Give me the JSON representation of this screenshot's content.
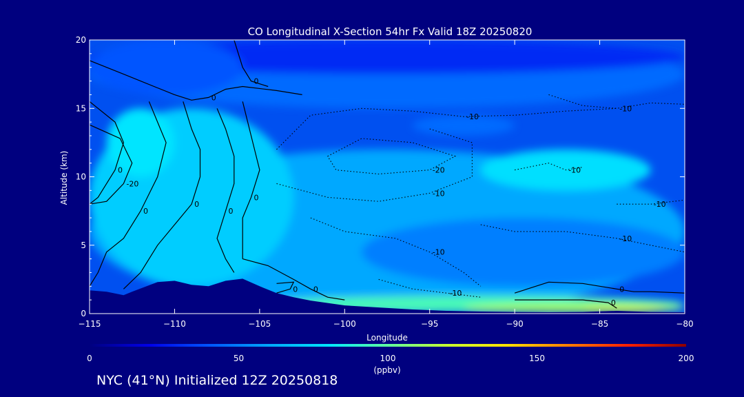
{
  "chart_data": {
    "type": "heatmap",
    "title": "CO Longitudinal X-Section 54hr  Fx Valid 18Z 20250820",
    "xlabel": "Longitude",
    "ylabel": "Altitude (km)",
    "xlim": [
      -115,
      -80
    ],
    "ylim": [
      0,
      20
    ],
    "x_ticks": [
      -115,
      -110,
      -105,
      -100,
      -95,
      -90,
      -85,
      -80
    ],
    "x_tick_labels": [
      "−115",
      "−110",
      "−105",
      "−100",
      "−95",
      "−90",
      "−85",
      "−80"
    ],
    "y_ticks": [
      0,
      5,
      10,
      15,
      20
    ],
    "y_tick_labels": [
      "0",
      "5",
      "10",
      "15",
      "20"
    ],
    "colorbar": {
      "label": "(ppbv)",
      "range": [
        0,
        200
      ],
      "ticks": [
        0,
        50,
        100,
        150,
        200
      ],
      "tick_labels": [
        "0",
        "50",
        "100",
        "150",
        "200"
      ],
      "colors": [
        "#00007f",
        "#0000e8",
        "#0055ff",
        "#00a8ff",
        "#00e5ff",
        "#60ffa0",
        "#c8ff30",
        "#ffe000",
        "#ff8000",
        "#ff2000",
        "#8b0000"
      ]
    },
    "terrain": {
      "longitude": [
        -115,
        -114,
        -113,
        -112.5,
        -111,
        -110,
        -109,
        -108,
        -107,
        -106,
        -105,
        -104,
        -103,
        -102,
        -100,
        -98,
        -96,
        -94,
        -92,
        -90,
        -88,
        -86,
        -84,
        -82,
        -80
      ],
      "altitude_km": [
        1.7,
        1.6,
        1.35,
        1.6,
        2.3,
        2.4,
        2.1,
        2.0,
        2.4,
        2.55,
        2.0,
        1.5,
        1.2,
        0.95,
        0.6,
        0.45,
        0.3,
        0.2,
        0.15,
        0.12,
        0.1,
        0.12,
        0.2,
        0.12,
        0.1
      ]
    },
    "regions": [
      {
        "value_ppbv": 60,
        "shape": "mid-level band",
        "longitude": [
          -115,
          -80
        ],
        "altitude_km": [
          0,
          12
        ]
      },
      {
        "value_ppbv": 72,
        "shape": "plume",
        "longitude": [
          -115,
          -103
        ],
        "altitude_km": [
          2,
          15
        ]
      },
      {
        "value_ppbv": 80,
        "shape": "plume core",
        "longitude": [
          -114,
          -110
        ],
        "altitude_km": [
          10,
          15
        ]
      },
      {
        "value_ppbv": 78,
        "shape": "elevated plume",
        "longitude": [
          -92,
          -82
        ],
        "altitude_km": [
          9,
          12
        ]
      },
      {
        "value_ppbv": 45,
        "shape": "upper layer",
        "longitude": [
          -115,
          -80
        ],
        "altitude_km": [
          15,
          20
        ]
      },
      {
        "value_ppbv": 30,
        "shape": "upper layer",
        "longitude": [
          -115,
          -80
        ],
        "altitude_km": [
          17.5,
          20
        ]
      },
      {
        "value_ppbv": 40,
        "shape": "blob",
        "longitude": [
          -115,
          -106
        ],
        "altitude_km": [
          16,
          20
        ]
      },
      {
        "value_ppbv": 45,
        "shape": "blob",
        "longitude": [
          -96,
          -90
        ],
        "altitude_km": [
          13,
          14.5
        ]
      },
      {
        "value_ppbv": 50,
        "shape": "lower trough",
        "longitude": [
          -99,
          -80
        ],
        "altitude_km": [
          2,
          7
        ]
      },
      {
        "value_ppbv": 95,
        "shape": "boundary layer",
        "longitude": [
          -105,
          -80
        ],
        "altitude_km": [
          0.1,
          1.3
        ]
      },
      {
        "value_ppbv": 115,
        "shape": "boundary layer",
        "longitude": [
          -93,
          -80
        ],
        "altitude_km": [
          0.1,
          0.7
        ]
      },
      {
        "value_ppbv": 125,
        "shape": "boundary layer core",
        "longitude": [
          -86,
          -81
        ],
        "altitude_km": [
          0.1,
          0.6
        ]
      }
    ],
    "contour_labels": [
      "-10",
      "-20",
      "0",
      "-10",
      "-10",
      "-20",
      "-10",
      "-10",
      "0",
      "-10",
      "0",
      "0",
      "0"
    ],
    "contours": [
      {
        "level": 0,
        "style": "solid",
        "points": [
          [
            -115,
            18.5
          ],
          [
            -113,
            17.5
          ],
          [
            -111,
            16.5
          ],
          [
            -110,
            16
          ],
          [
            -109,
            15.6
          ],
          [
            -108,
            15.8
          ],
          [
            -107,
            16.4
          ],
          [
            -106,
            16.6
          ],
          [
            -104,
            16.3
          ],
          [
            -102.5,
            16
          ]
        ]
      },
      {
        "level": 0,
        "style": "solid",
        "points": [
          [
            -106.5,
            20
          ],
          [
            -106,
            18
          ],
          [
            -105.5,
            17
          ],
          [
            -104.5,
            16.6
          ]
        ]
      },
      {
        "level": 0,
        "style": "solid",
        "points": [
          [
            -115,
            15.5
          ],
          [
            -113.5,
            14
          ],
          [
            -113,
            12.5
          ],
          [
            -113.5,
            10.5
          ],
          [
            -114.5,
            8.5
          ],
          [
            -115,
            8
          ]
        ]
      },
      {
        "level": -20,
        "style": "solid",
        "points": [
          [
            -115,
            13.8
          ],
          [
            -113.2,
            12.8
          ],
          [
            -112.5,
            11
          ],
          [
            -113,
            9.5
          ],
          [
            -114,
            8.2
          ],
          [
            -115,
            8
          ]
        ]
      },
      {
        "level": 0,
        "style": "solid",
        "points": [
          [
            -111.5,
            15.5
          ],
          [
            -111,
            14
          ],
          [
            -110.5,
            12.5
          ],
          [
            -111,
            10
          ],
          [
            -112,
            7.5
          ],
          [
            -113,
            5.5
          ],
          [
            -114,
            4.5
          ],
          [
            -114.5,
            3
          ],
          [
            -115,
            2
          ]
        ]
      },
      {
        "level": 0,
        "style": "solid",
        "points": [
          [
            -109.5,
            15.5
          ],
          [
            -109,
            13.5
          ],
          [
            -108.5,
            12
          ],
          [
            -108.5,
            10
          ],
          [
            -109,
            8
          ],
          [
            -110,
            6.5
          ],
          [
            -111,
            5
          ],
          [
            -112,
            3
          ],
          [
            -113,
            1.8
          ]
        ]
      },
      {
        "level": 0,
        "style": "solid",
        "points": [
          [
            -107.5,
            15
          ],
          [
            -107,
            13.5
          ],
          [
            -106.5,
            11.5
          ],
          [
            -106.5,
            9.5
          ],
          [
            -107,
            7.5
          ],
          [
            -107.5,
            5.5
          ],
          [
            -107,
            4
          ],
          [
            -106.5,
            3
          ]
        ]
      },
      {
        "level": 0,
        "style": "solid",
        "points": [
          [
            -106,
            15.5
          ],
          [
            -105.5,
            13
          ],
          [
            -105,
            10.5
          ],
          [
            -105.5,
            8.5
          ],
          [
            -106,
            7
          ],
          [
            -106,
            5.5
          ],
          [
            -106,
            4
          ]
        ]
      },
      {
        "level": 0,
        "style": "solid",
        "points": [
          [
            -106,
            4
          ],
          [
            -104.5,
            3.5
          ],
          [
            -103,
            2.5
          ],
          [
            -102,
            1.8
          ],
          [
            -101,
            1.2
          ],
          [
            -100,
            1
          ]
        ]
      },
      {
        "level": 0,
        "style": "solid",
        "points": [
          [
            -104,
            2.2
          ],
          [
            -103,
            2.3
          ],
          [
            -103.2,
            1.8
          ],
          [
            -104,
            1.5
          ]
        ]
      },
      {
        "level": 0,
        "style": "solid",
        "points": [
          [
            -90,
            1.5
          ],
          [
            -88,
            2.3
          ],
          [
            -86,
            2.2
          ],
          [
            -84,
            1.8
          ],
          [
            -83,
            1.6
          ],
          [
            -82,
            1.6
          ],
          [
            -80,
            1.5
          ]
        ]
      },
      {
        "level": 0,
        "style": "solid",
        "points": [
          [
            -90,
            1
          ],
          [
            -86,
            1
          ],
          [
            -84.5,
            0.8
          ],
          [
            -84,
            0.4
          ]
        ]
      },
      {
        "level": -10,
        "style": "dotted",
        "points": [
          [
            -104,
            12
          ],
          [
            -102,
            14.5
          ],
          [
            -99,
            15
          ],
          [
            -96,
            14.8
          ],
          [
            -93,
            14.4
          ],
          [
            -90,
            14.5
          ],
          [
            -87,
            14.8
          ],
          [
            -84,
            15
          ]
        ]
      },
      {
        "level": -20,
        "style": "dotted",
        "points": [
          [
            -101,
            11.5
          ],
          [
            -99,
            12.8
          ],
          [
            -96,
            12.5
          ],
          [
            -93.5,
            11.5
          ],
          [
            -95,
            10.5
          ],
          [
            -98,
            10.2
          ],
          [
            -100.5,
            10.5
          ],
          [
            -101,
            11.5
          ]
        ]
      },
      {
        "level": -10,
        "style": "dotted",
        "points": [
          [
            -104,
            9.5
          ],
          [
            -101,
            8.5
          ],
          [
            -98,
            8.2
          ],
          [
            -95,
            8.8
          ],
          [
            -92.5,
            10
          ],
          [
            -92.5,
            12.5
          ],
          [
            -95,
            13.5
          ]
        ]
      },
      {
        "level": -10,
        "style": "dotted",
        "points": [
          [
            -102,
            7
          ],
          [
            -100,
            6
          ],
          [
            -97,
            5.5
          ],
          [
            -95,
            4.5
          ],
          [
            -93,
            3
          ],
          [
            -92,
            2
          ]
        ]
      },
      {
        "level": -10,
        "style": "dotted",
        "points": [
          [
            -88,
            16
          ],
          [
            -86,
            15.2
          ],
          [
            -84,
            15
          ],
          [
            -82,
            15.4
          ],
          [
            -80,
            15.3
          ]
        ]
      },
      {
        "level": -10,
        "style": "dotted",
        "points": [
          [
            -84,
            8
          ],
          [
            -82,
            8
          ],
          [
            -80,
            8.3
          ]
        ]
      },
      {
        "level": -10,
        "style": "dotted",
        "points": [
          [
            -90,
            10.5
          ],
          [
            -88,
            11
          ],
          [
            -87,
            10.5
          ],
          [
            -86,
            10.7
          ]
        ]
      },
      {
        "level": -10,
        "style": "dotted",
        "points": [
          [
            -92,
            6.5
          ],
          [
            -90,
            6
          ],
          [
            -87,
            6
          ],
          [
            -84,
            5.5
          ],
          [
            -82,
            5
          ],
          [
            -80,
            4.5
          ]
        ]
      },
      {
        "level": -10,
        "style": "dotted",
        "points": [
          [
            -98,
            2.5
          ],
          [
            -96,
            1.8
          ],
          [
            -94,
            1.5
          ],
          [
            -92,
            1.2
          ]
        ]
      }
    ]
  },
  "footer": {
    "text": "NYC (41°N) Initialized 12Z 20250818"
  }
}
